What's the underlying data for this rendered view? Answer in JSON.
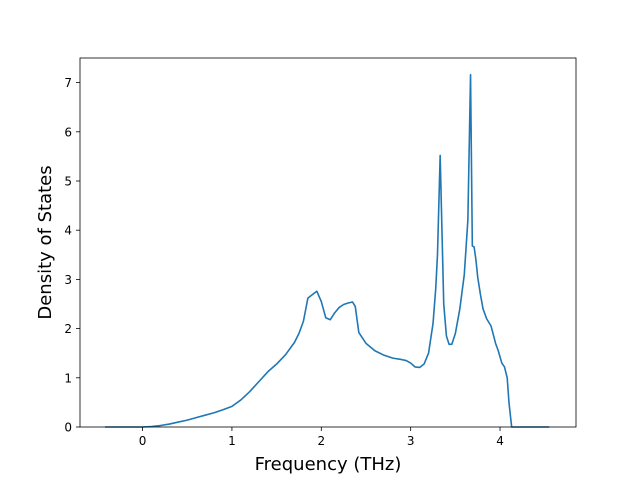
{
  "chart_data": {
    "type": "line",
    "title": "",
    "xlabel": "Frequency (THz)",
    "ylabel": "Density of States",
    "xlim": [
      -0.7,
      4.85
    ],
    "ylim": [
      0,
      7.5
    ],
    "xticks": [
      0,
      1,
      2,
      3,
      4
    ],
    "yticks": [
      0,
      1,
      2,
      3,
      4,
      5,
      6,
      7
    ],
    "xtick_labels": [
      "0",
      "1",
      "2",
      "3",
      "4"
    ],
    "ytick_labels": [
      "0",
      "1",
      "2",
      "3",
      "4",
      "5",
      "6",
      "7"
    ],
    "grid": false,
    "legend": "none",
    "colors": {
      "line": "#1f77b4",
      "axes": "#000000",
      "background": "#ffffff"
    },
    "series": [
      {
        "x": [
          -0.42,
          -0.2,
          0.0,
          0.1,
          0.2,
          0.3,
          0.4,
          0.5,
          0.6,
          0.7,
          0.8,
          0.9,
          1.0,
          1.1,
          1.2,
          1.3,
          1.4,
          1.5,
          1.6,
          1.7,
          1.75,
          1.8,
          1.85,
          1.9,
          1.95,
          2.0,
          2.05,
          2.1,
          2.15,
          2.2,
          2.25,
          2.3,
          2.35,
          2.38,
          2.42,
          2.5,
          2.6,
          2.7,
          2.8,
          2.9,
          2.95,
          3.0,
          3.05,
          3.1,
          3.15,
          3.2,
          3.25,
          3.28,
          3.3,
          3.33,
          3.35,
          3.37,
          3.4,
          3.43,
          3.46,
          3.5,
          3.55,
          3.6,
          3.64,
          3.67,
          3.69,
          3.71,
          3.73,
          3.75,
          3.78,
          3.81,
          3.85,
          3.9,
          3.95,
          3.98,
          4.02,
          4.05,
          4.08,
          4.1,
          4.13,
          4.2,
          4.3,
          4.4,
          4.55
        ],
        "y": [
          0.0,
          0.0,
          0.0,
          0.01,
          0.03,
          0.06,
          0.1,
          0.14,
          0.19,
          0.24,
          0.29,
          0.35,
          0.42,
          0.55,
          0.72,
          0.92,
          1.12,
          1.28,
          1.47,
          1.72,
          1.9,
          2.15,
          2.62,
          2.69,
          2.76,
          2.55,
          2.22,
          2.18,
          2.32,
          2.43,
          2.49,
          2.52,
          2.54,
          2.45,
          1.92,
          1.7,
          1.55,
          1.46,
          1.4,
          1.37,
          1.35,
          1.3,
          1.22,
          1.21,
          1.28,
          1.5,
          2.1,
          2.8,
          3.5,
          5.52,
          4.0,
          2.5,
          1.85,
          1.68,
          1.68,
          1.9,
          2.4,
          3.1,
          4.2,
          7.16,
          3.68,
          3.66,
          3.4,
          3.05,
          2.7,
          2.4,
          2.2,
          2.05,
          1.7,
          1.55,
          1.3,
          1.22,
          1.0,
          0.5,
          0.0,
          0.0,
          0.0,
          0.0,
          0.0
        ]
      }
    ]
  }
}
